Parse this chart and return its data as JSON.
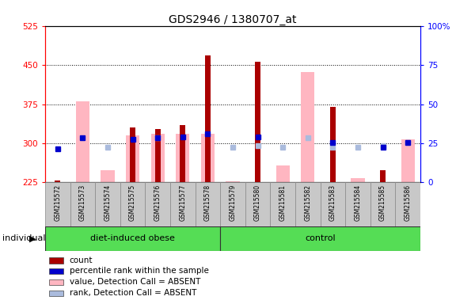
{
  "title": "GDS2946 / 1380707_at",
  "samples": [
    "GSM215572",
    "GSM215573",
    "GSM215574",
    "GSM215575",
    "GSM215576",
    "GSM215577",
    "GSM215578",
    "GSM215579",
    "GSM215580",
    "GSM215581",
    "GSM215582",
    "GSM215583",
    "GSM215584",
    "GSM215585",
    "GSM215586"
  ],
  "groups": [
    {
      "label": "diet-induced obese",
      "start": 0,
      "end": 7,
      "color": "#66DD66"
    },
    {
      "label": "control",
      "start": 7,
      "end": 15,
      "color": "#66DD66"
    }
  ],
  "count": [
    228,
    225,
    225,
    330,
    328,
    335,
    468,
    225,
    456,
    225,
    225,
    370,
    225,
    248,
    225
  ],
  "percentile_rank": [
    290,
    310,
    225,
    308,
    310,
    312,
    318,
    225,
    312,
    225,
    225,
    302,
    225,
    292,
    302
  ],
  "absent_value": [
    null,
    380,
    248,
    315,
    318,
    318,
    318,
    227,
    225,
    257,
    437,
    null,
    233,
    null,
    308
  ],
  "absent_rank": [
    null,
    null,
    292,
    null,
    310,
    null,
    null,
    292,
    295,
    292,
    310,
    292,
    292,
    295,
    302
  ],
  "ylim_left": [
    225,
    525
  ],
  "ylim_right": [
    0,
    100
  ],
  "yticks_left": [
    225,
    300,
    375,
    450,
    525
  ],
  "yticks_right": [
    0,
    25,
    50,
    75,
    100
  ],
  "group_label": "individual",
  "legend_items": [
    {
      "label": "count",
      "color": "#AA0000"
    },
    {
      "label": "percentile rank within the sample",
      "color": "#0000AA"
    },
    {
      "label": "value, Detection Call = ABSENT",
      "color": "#FFB6C1"
    },
    {
      "label": "rank, Detection Call = ABSENT",
      "color": "#AABBDD"
    }
  ],
  "count_color": "#AA0000",
  "rank_color": "#0000CC",
  "absent_value_color": "#FFB6C1",
  "absent_rank_color": "#AABBDD",
  "bg_color": "#C8C8C8",
  "plot_bg": "#FFFFFF",
  "green_color": "#55DD55"
}
